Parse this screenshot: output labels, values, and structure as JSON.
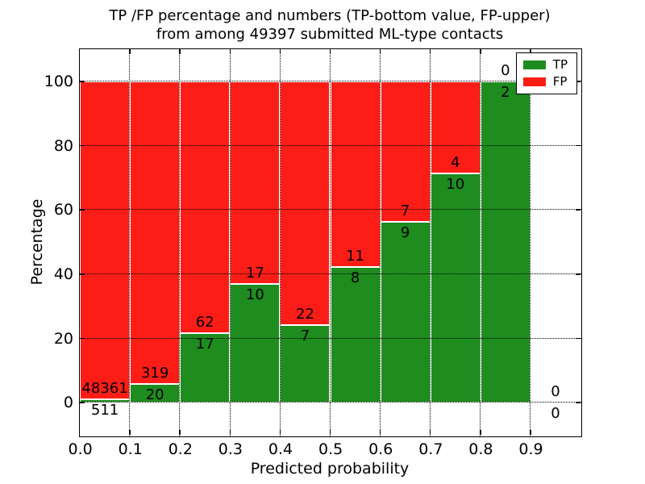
{
  "chart_data": {
    "type": "bar",
    "variant": "stacked-percentage",
    "title_line1": "TP /FP percentage and numbers (TP-bottom value, FP-upper)",
    "title_line2": "from among 49397 submitted ML-type contacts",
    "xlabel": "Predicted probability",
    "ylabel": "Percentage",
    "xlim": [
      0.0,
      1.0
    ],
    "ylim": [
      -10,
      110
    ],
    "x_ticks": [
      0.0,
      0.1,
      0.2,
      0.3,
      0.4,
      0.5,
      0.6,
      0.7,
      0.8,
      0.9
    ],
    "x_tick_labels": [
      "0.0",
      "0.1",
      "0.2",
      "0.3",
      "0.4",
      "0.5",
      "0.6",
      "0.7",
      "0.8",
      "0.9"
    ],
    "x_grid_ticks": [
      0.1,
      0.2,
      0.3,
      0.4,
      0.5,
      0.6,
      0.7,
      0.8,
      0.9
    ],
    "y_ticks": [
      0,
      20,
      40,
      60,
      80,
      100
    ],
    "y_tick_labels": [
      "0",
      "20",
      "40",
      "60",
      "80",
      "100"
    ],
    "grid": true,
    "legend": {
      "position": "upper-right",
      "entries": [
        {
          "label": "TP",
          "color": "#1e8c1e"
        },
        {
          "label": "FP",
          "color": "#fc1d17"
        }
      ]
    },
    "bins": [
      {
        "range": [
          0.0,
          0.1
        ],
        "tp": 511,
        "fp": 48361
      },
      {
        "range": [
          0.1,
          0.2
        ],
        "tp": 20,
        "fp": 319
      },
      {
        "range": [
          0.2,
          0.3
        ],
        "tp": 17,
        "fp": 62
      },
      {
        "range": [
          0.3,
          0.4
        ],
        "tp": 10,
        "fp": 17
      },
      {
        "range": [
          0.4,
          0.5
        ],
        "tp": 7,
        "fp": 22
      },
      {
        "range": [
          0.5,
          0.6
        ],
        "tp": 8,
        "fp": 11
      },
      {
        "range": [
          0.6,
          0.7
        ],
        "tp": 9,
        "fp": 7
      },
      {
        "range": [
          0.7,
          0.8
        ],
        "tp": 10,
        "fp": 4
      },
      {
        "range": [
          0.8,
          0.9
        ],
        "tp": 2,
        "fp": 0
      },
      {
        "range": [
          0.9,
          1.0
        ],
        "tp": 0,
        "fp": 0
      }
    ],
    "colors": {
      "tp": "#1e8c1e",
      "fp": "#fc1d17",
      "grid": "#000000",
      "background": "#ffffff"
    }
  }
}
